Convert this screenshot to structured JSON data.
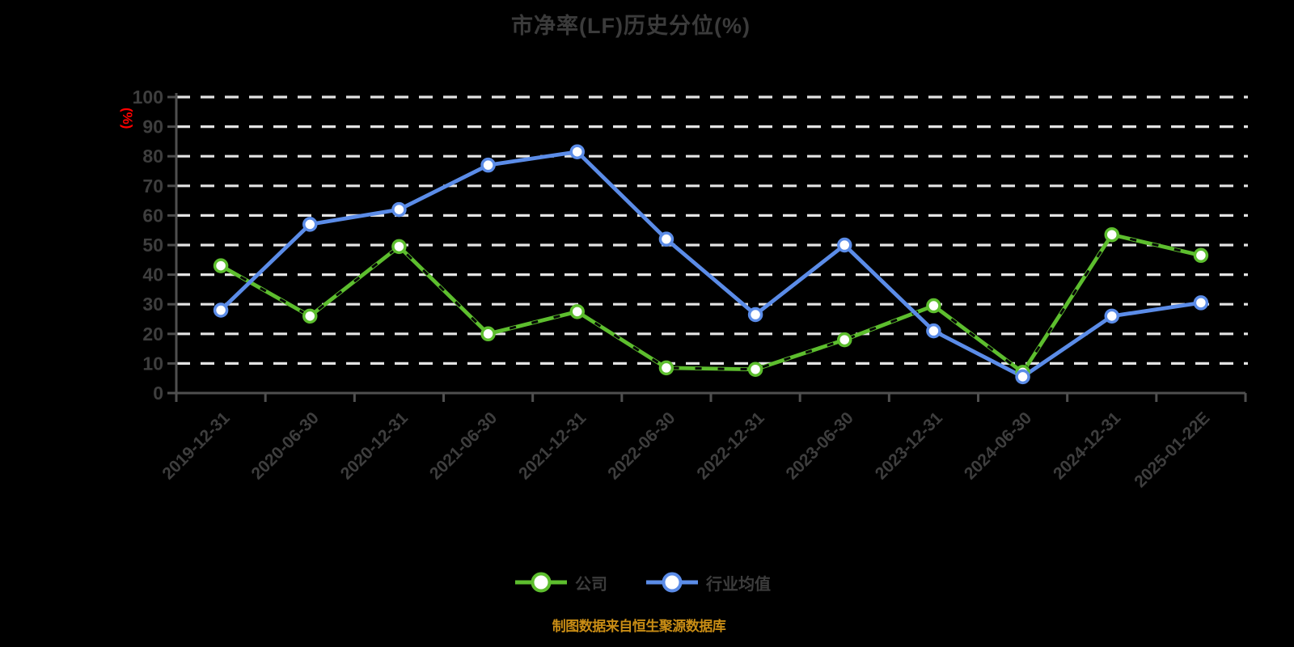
{
  "title": "市净率(LF)历史分位(%)",
  "footer": "制图数据来自恒生聚源数据库",
  "colors": {
    "background": "#000000",
    "title_text": "#3b3b3b",
    "axis_line": "#4f4f4f",
    "tick_text": "#3e3e3e",
    "gridline": "#e3e3e3",
    "company_green": "#5dbe2e",
    "industry_blue": "#5b8ce8",
    "ylabel_red": "#ff0000",
    "footer_orange": "#c98d15"
  },
  "legend": {
    "items": [
      {
        "label": "公司",
        "color": "#5dbe2e"
      },
      {
        "label": "行业均值",
        "color": "#5b8ce8"
      }
    ]
  },
  "chart_data": {
    "type": "line",
    "title": "市净率(LF)历史分位(%)",
    "xlabel": "",
    "ylabel": "(%)",
    "ylim": [
      0,
      100
    ],
    "yticks": [
      0,
      10,
      20,
      30,
      40,
      50,
      60,
      70,
      80,
      90,
      100
    ],
    "grid": "horizontal-dashed-white",
    "legend_position": "bottom",
    "categories": [
      "2019-12-31",
      "2020-06-30",
      "2020-12-31",
      "2021-06-30",
      "2021-12-31",
      "2022-06-30",
      "2022-12-31",
      "2023-06-30",
      "2023-12-31",
      "2024-06-30",
      "2024-12-31",
      "2025-01-22E"
    ],
    "series": [
      {
        "name": "公司",
        "color": "#5dbe2e",
        "overlay_dashes": true,
        "values": [
          43,
          26,
          49.5,
          20,
          27.5,
          8.5,
          8,
          18,
          29.5,
          7,
          53.5,
          46.5
        ]
      },
      {
        "name": "行业均值",
        "color": "#5b8ce8",
        "overlay_dashes": false,
        "values": [
          28,
          57,
          62,
          77,
          81.5,
          52,
          26.5,
          50,
          21,
          5.5,
          26,
          30.5
        ]
      }
    ]
  }
}
